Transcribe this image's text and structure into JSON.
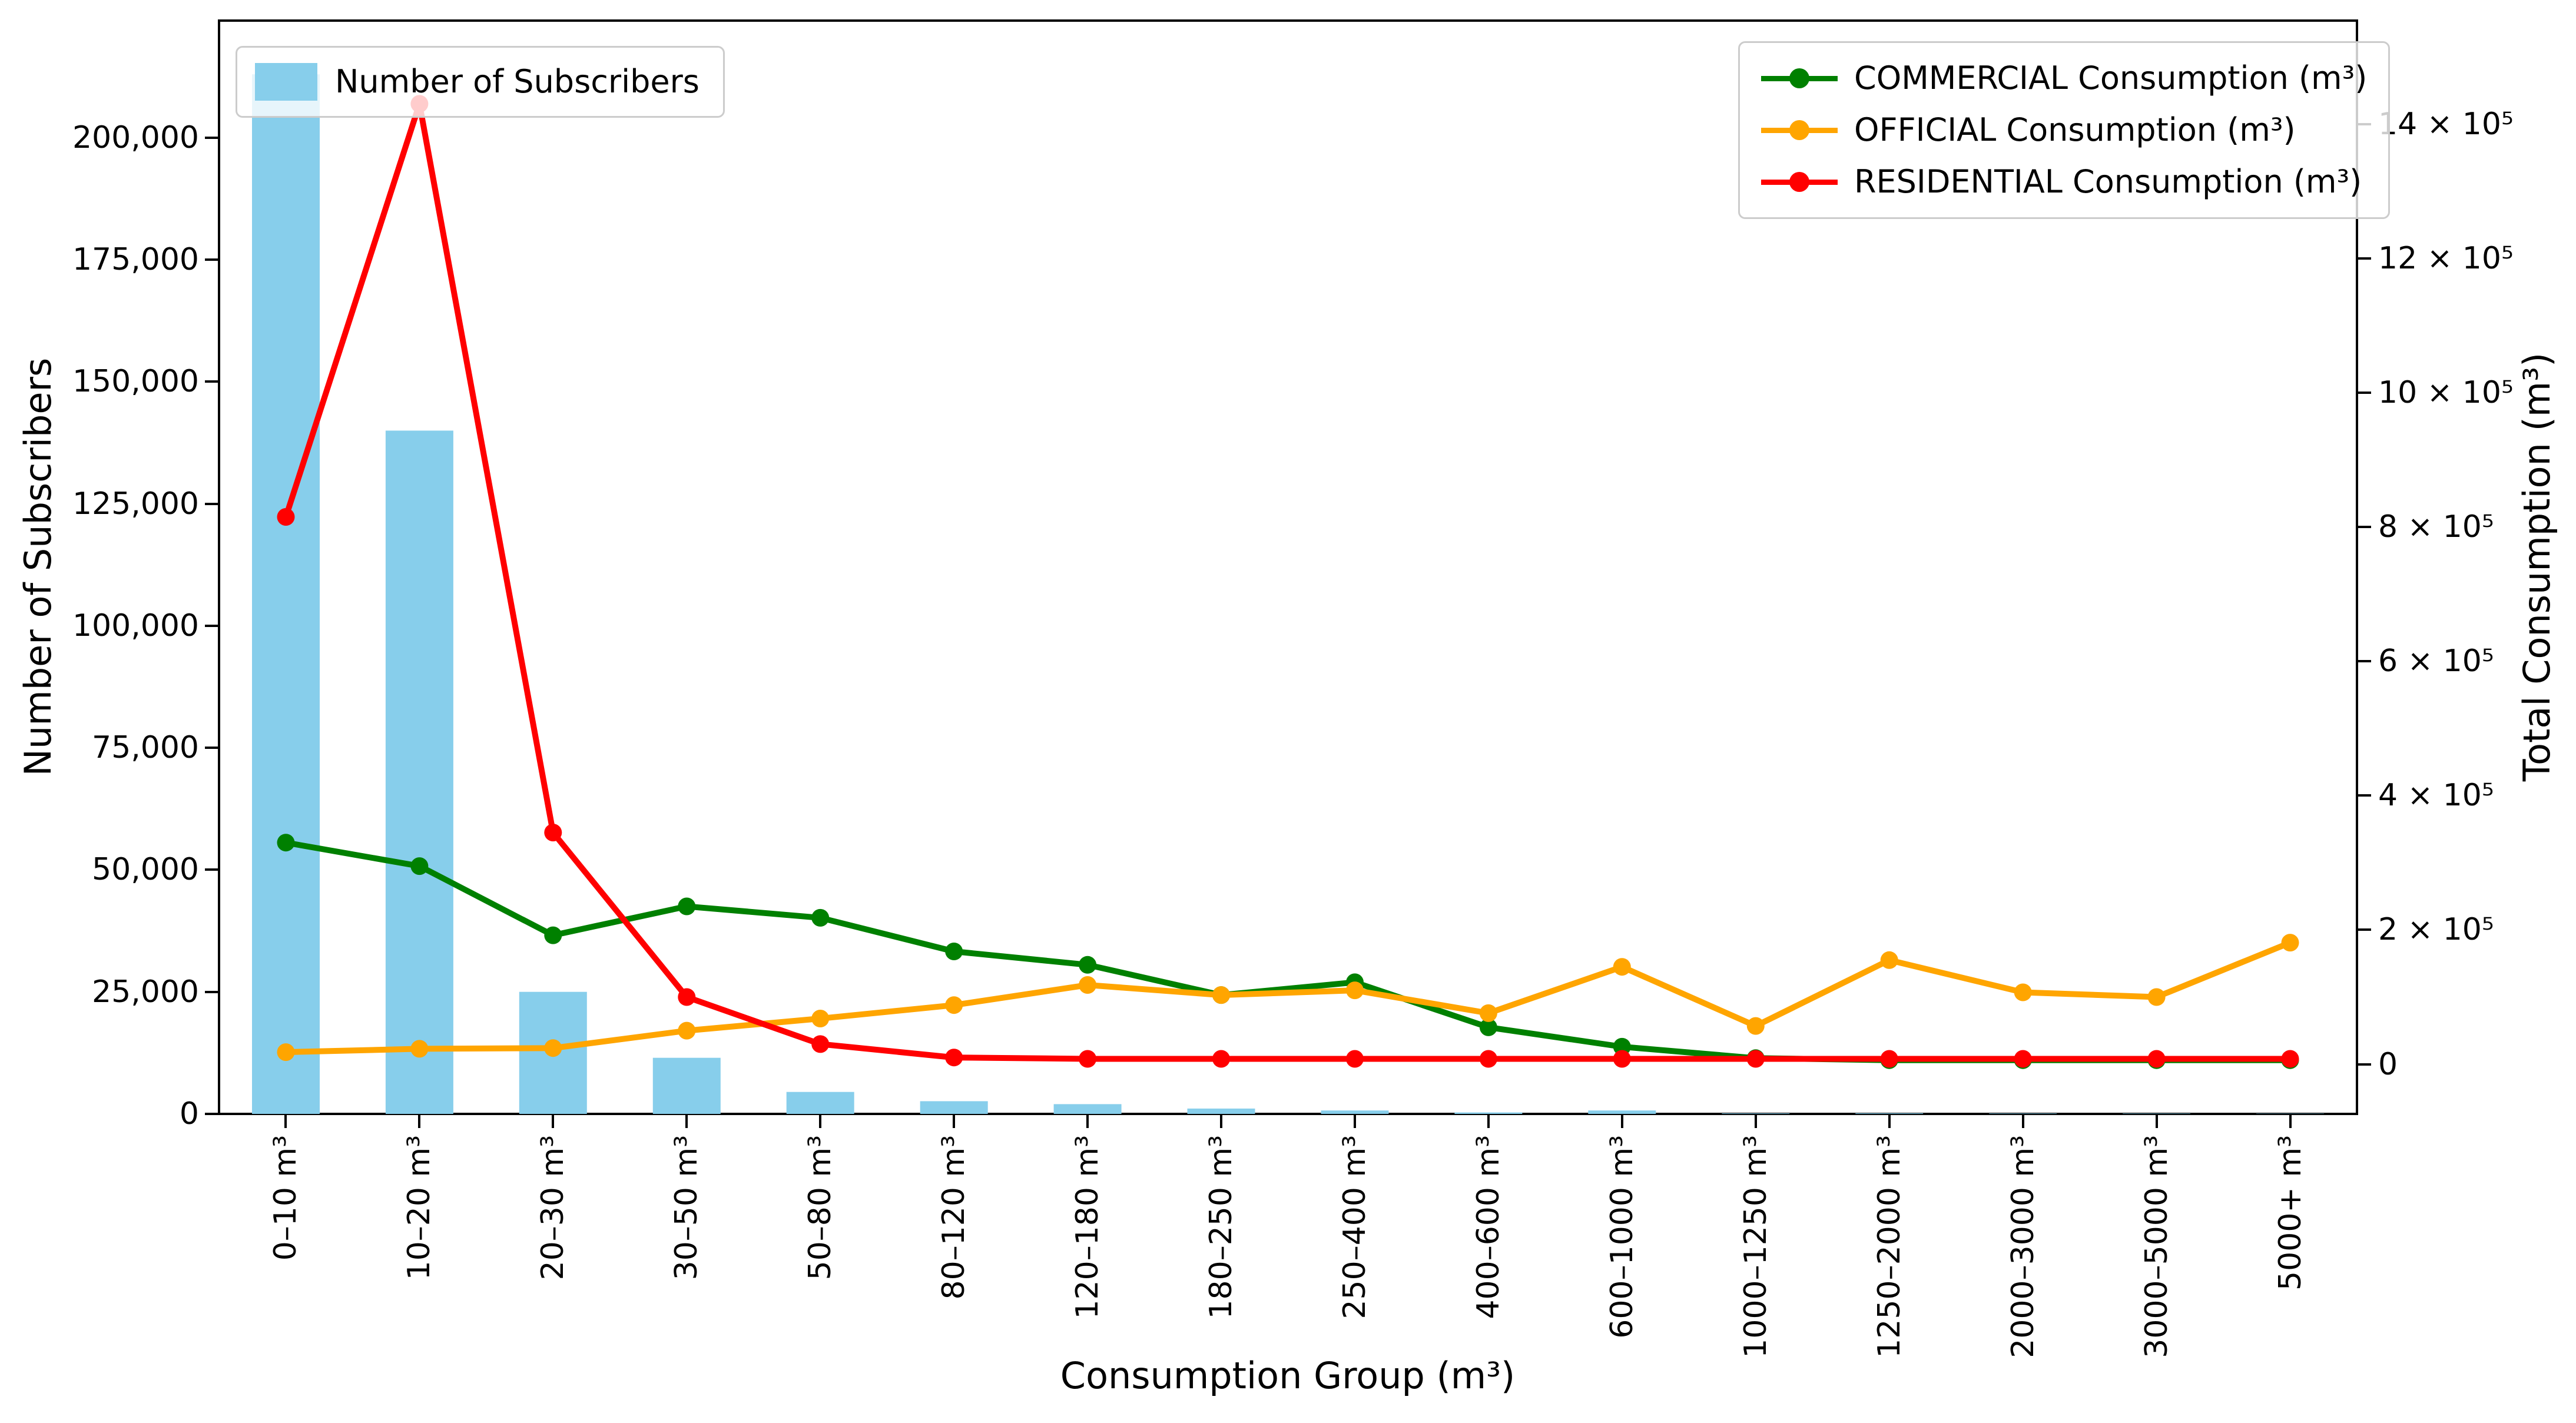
{
  "chart_data": {
    "type": "composite",
    "title": "",
    "xlabel": "Consumption Group (m³)",
    "grid": false,
    "categories": [
      "0–10 m³",
      "10–20 m³",
      "20–30 m³",
      "30–50 m³",
      "50–80 m³",
      "80–120 m³",
      "120–180 m³",
      "180–250 m³",
      "250–400 m³",
      "400–600 m³",
      "600–1000 m³",
      "1000–1250 m³",
      "1250–2000 m³",
      "2000–3000 m³",
      "3000–5000 m³",
      "5000+ m³"
    ],
    "bar_series": {
      "name": "Number of Subscribers",
      "color": "#87CEEB",
      "axis": "left",
      "values": [
        213000,
        140000,
        25000,
        11500,
        4500,
        2600,
        2000,
        1100,
        700,
        300,
        700,
        120,
        150,
        100,
        80,
        60
      ]
    },
    "line_series": [
      {
        "name": "COMMERCIAL Consumption (m³)",
        "color": "#008000",
        "axis": "right",
        "values": [
          330000,
          295000,
          192000,
          235000,
          218000,
          168000,
          148000,
          103000,
          122000,
          55000,
          26000,
          9000,
          6000,
          6000,
          6000,
          6000
        ]
      },
      {
        "name": "OFFICIAL Consumption (m³)",
        "color": "#FFA500",
        "axis": "right",
        "values": [
          18000,
          23000,
          24000,
          50000,
          68000,
          88000,
          118000,
          103000,
          110000,
          76000,
          145000,
          57000,
          155000,
          107000,
          100000,
          181000
        ]
      },
      {
        "name": "RESIDENTIAL Consumption (m³)",
        "color": "#FF0000",
        "axis": "right",
        "values": [
          815000,
          1430000,
          345000,
          100000,
          30000,
          10000,
          8000,
          8000,
          8000,
          8000,
          8000,
          8000,
          8000,
          8000,
          8000,
          8000
        ]
      }
    ],
    "left_axis": {
      "label": "Number of Subscribers",
      "ylim": [
        0,
        224000
      ],
      "ticks": [
        {
          "value": 0,
          "label": "0"
        },
        {
          "value": 25000,
          "label": "25,000"
        },
        {
          "value": 50000,
          "label": "50,000"
        },
        {
          "value": 75000,
          "label": "75,000"
        },
        {
          "value": 100000,
          "label": "100,000"
        },
        {
          "value": 125000,
          "label": "125,000"
        },
        {
          "value": 150000,
          "label": "150,000"
        },
        {
          "value": 175000,
          "label": "175,000"
        },
        {
          "value": 200000,
          "label": "200,000"
        }
      ]
    },
    "right_axis": {
      "label": "Total Consumption (m³)",
      "ylim": [
        -74000,
        1554000
      ],
      "ticks": [
        {
          "value": 0,
          "label": "0"
        },
        {
          "value": 200000,
          "label": "2 × 10⁵"
        },
        {
          "value": 400000,
          "label": "4 × 10⁵"
        },
        {
          "value": 600000,
          "label": "6 × 10⁵"
        },
        {
          "value": 800000,
          "label": "8 × 10⁵"
        },
        {
          "value": 1000000,
          "label": "10 × 10⁵"
        },
        {
          "value": 1200000,
          "label": "12 × 10⁵"
        },
        {
          "value": 1400000,
          "label": "14 × 10⁵"
        }
      ]
    },
    "legend_positions": {
      "bars": "upper left",
      "lines": "upper right"
    }
  }
}
